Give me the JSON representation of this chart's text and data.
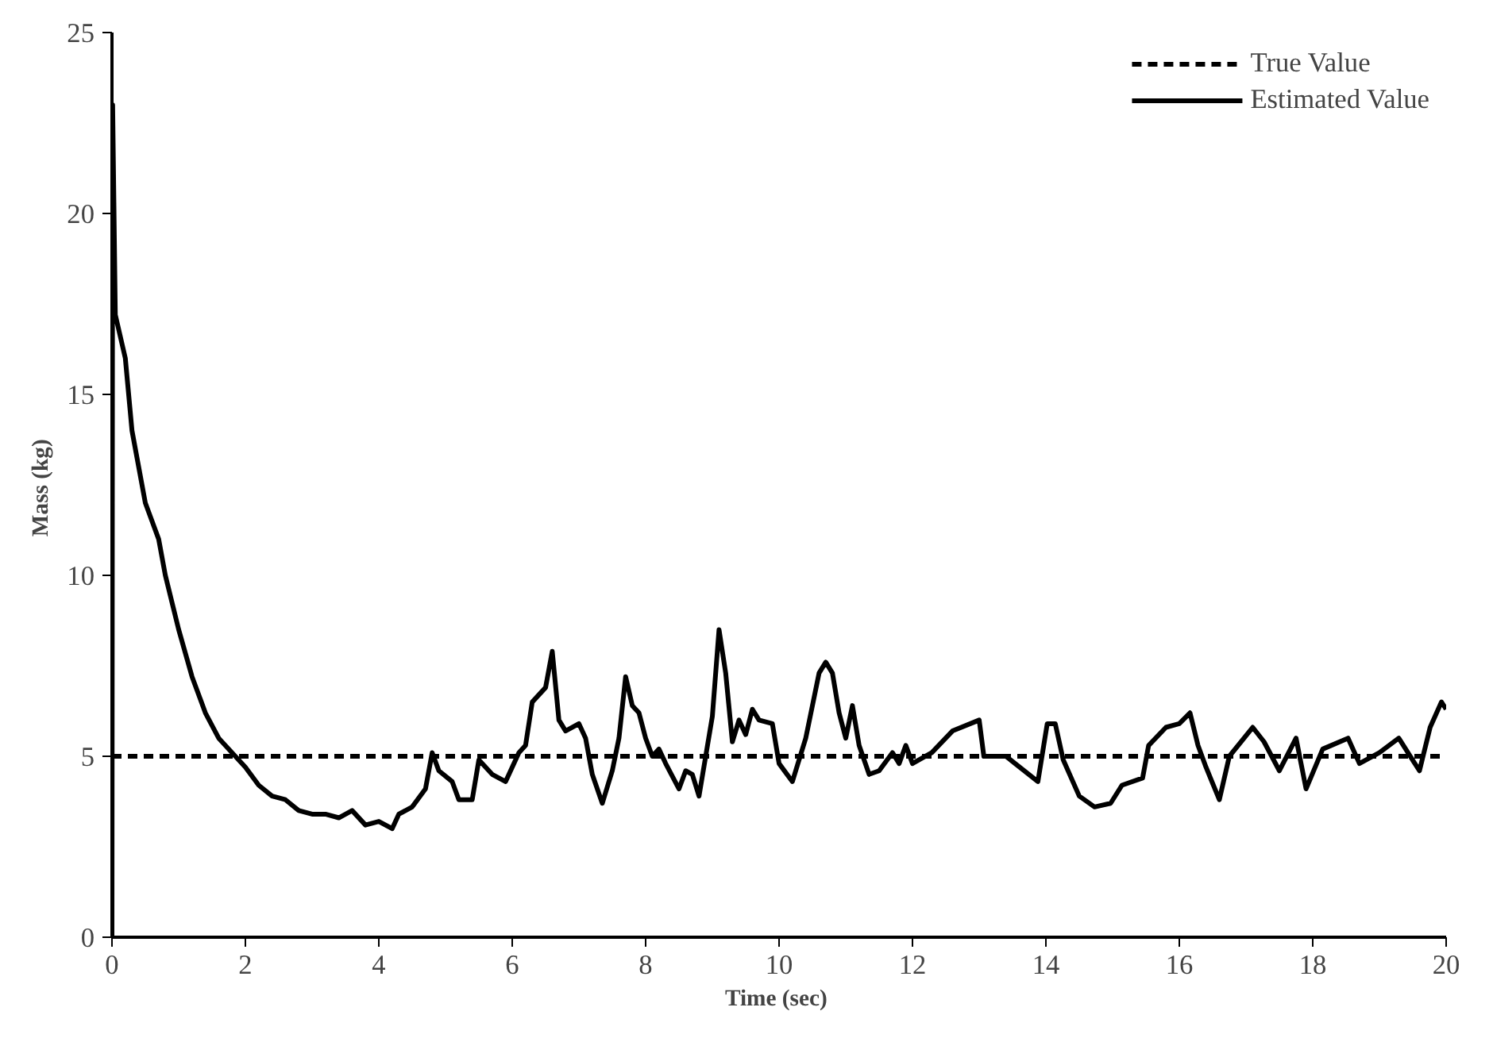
{
  "chart_data": {
    "type": "line",
    "xlabel": "Time  (sec)",
    "ylabel": "Mass  (kg)",
    "xlim": [
      0,
      20
    ],
    "ylim": [
      0,
      25
    ],
    "xticks": [
      0,
      2,
      4,
      6,
      8,
      10,
      12,
      14,
      16,
      18,
      20
    ],
    "yticks": [
      0,
      5,
      10,
      15,
      20,
      25
    ],
    "grid": false,
    "legend": "top right",
    "marker": "none",
    "series": [
      {
        "name": "True Value",
        "color": "#000000",
        "line_style": "dashed",
        "x": [
          0,
          20
        ],
        "values": [
          5,
          5
        ]
      },
      {
        "name": "Estimated Value",
        "color": "#000000",
        "line_style": "solid",
        "x": [
          0,
          0.01,
          0.05,
          0.2,
          0.3,
          0.5,
          0.7,
          0.8,
          1.0,
          1.2,
          1.4,
          1.6,
          1.8,
          2.0,
          2.2,
          2.4,
          2.6,
          2.8,
          3.0,
          3.2,
          3.4,
          3.6,
          3.8,
          4.0,
          4.2,
          4.3,
          4.5,
          4.7,
          4.8,
          4.9,
          5.1,
          5.2,
          5.4,
          5.5,
          5.7,
          5.9,
          6.1,
          6.2,
          6.3,
          6.5,
          6.6,
          6.7,
          6.8,
          7.0,
          7.1,
          7.2,
          7.35,
          7.5,
          7.6,
          7.7,
          7.8,
          7.9,
          8.0,
          8.1,
          8.2,
          8.3,
          8.5,
          8.6,
          8.7,
          8.8,
          8.9,
          9.0,
          9.1,
          9.2,
          9.3,
          9.4,
          9.5,
          9.6,
          9.7,
          9.9,
          10.0,
          10.2,
          10.4,
          10.6,
          10.7,
          10.8,
          10.9,
          11.0,
          11.1,
          11.2,
          11.35,
          11.5,
          11.7,
          11.8,
          11.9,
          12.0,
          12.29,
          12.6,
          13.0,
          13.07,
          13.4,
          13.88,
          14.02,
          14.14,
          14.26,
          14.5,
          14.73,
          14.97,
          15.14,
          15.45,
          15.54,
          15.8,
          16.0,
          16.16,
          16.28,
          16.4,
          16.6,
          16.75,
          17.1,
          17.27,
          17.5,
          17.75,
          17.9,
          18.15,
          18.53,
          18.7,
          19.0,
          19.29,
          19.6,
          19.76,
          19.93,
          20
        ],
        "values": [
          0,
          23,
          17.2,
          16,
          14,
          12,
          11,
          10,
          8.5,
          7.2,
          6.2,
          5.5,
          5.1,
          4.7,
          4.2,
          3.9,
          3.8,
          3.5,
          3.4,
          3.4,
          3.3,
          3.5,
          3.1,
          3.2,
          3.0,
          3.4,
          3.6,
          4.1,
          5.1,
          4.6,
          4.3,
          3.8,
          3.8,
          4.9,
          4.5,
          4.3,
          5.1,
          5.3,
          6.5,
          6.9,
          7.9,
          6.0,
          5.7,
          5.9,
          5.5,
          4.5,
          3.7,
          4.6,
          5.5,
          7.2,
          6.4,
          6.2,
          5.5,
          5.0,
          5.2,
          4.8,
          4.1,
          4.6,
          4.5,
          3.9,
          5.0,
          6.1,
          8.5,
          7.3,
          5.4,
          6.0,
          5.6,
          6.3,
          6.0,
          5.9,
          4.8,
          4.3,
          5.5,
          7.3,
          7.6,
          7.3,
          6.2,
          5.5,
          6.4,
          5.3,
          4.5,
          4.6,
          5.1,
          4.8,
          5.3,
          4.8,
          5.1,
          5.7,
          6.0,
          5.0,
          5.0,
          4.3,
          5.9,
          5.9,
          4.9,
          3.9,
          3.6,
          3.7,
          4.2,
          4.4,
          5.3,
          5.8,
          5.9,
          6.2,
          5.3,
          4.7,
          3.8,
          5.0,
          5.8,
          5.4,
          4.6,
          5.5,
          4.1,
          5.2,
          5.5,
          4.8,
          5.1,
          5.5,
          4.6,
          5.8,
          6.5,
          6.3
        ]
      }
    ]
  }
}
